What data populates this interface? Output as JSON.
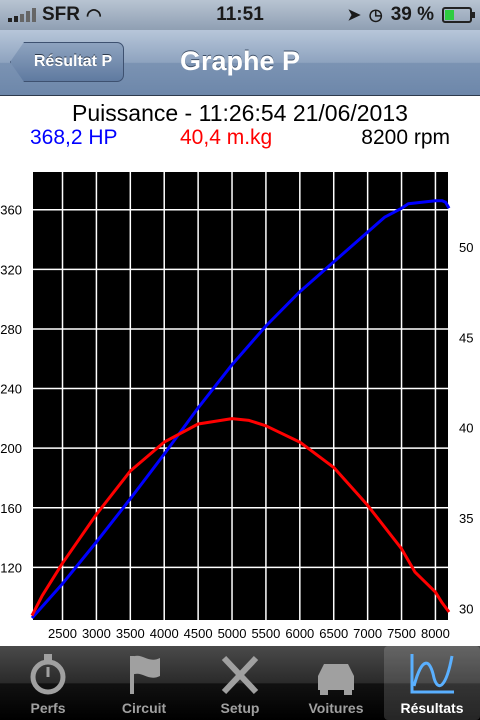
{
  "status_bar": {
    "carrier": "SFR",
    "time": "11:51",
    "battery": "39 %",
    "battery_level": 0.39
  },
  "nav": {
    "title": "Graphe P",
    "back_label": "Résultat P"
  },
  "chart_header": {
    "title": "Puissance - 11:26:54 21/06/2013",
    "power_readout": "368,2 HP",
    "torque_readout": "40,4 m.kg",
    "rpm_readout": "8200 rpm"
  },
  "chart_data": {
    "type": "line",
    "title": "Puissance - 11:26:54 21/06/2013",
    "xlabel": "",
    "ylabel": "",
    "y2label": "",
    "xlim": [
      2050,
      8200
    ],
    "ylim": [
      84,
      386
    ],
    "y2lim": [
      29.3,
      54.2
    ],
    "x_ticks": [
      2500,
      3000,
      3500,
      4000,
      4500,
      5000,
      5500,
      6000,
      6500,
      7000,
      7500,
      8000
    ],
    "y_ticks": [
      120,
      160,
      200,
      240,
      280,
      320,
      360
    ],
    "y2_ticks": [
      30,
      35,
      40,
      45,
      50
    ],
    "grid": true,
    "series": [
      {
        "name": "HP",
        "color": "#0000ff",
        "axis": "left",
        "x": [
          2050,
          2500,
          3000,
          3500,
          4000,
          4500,
          5000,
          5500,
          6000,
          6500,
          7000,
          7250,
          7500,
          7600,
          7800,
          8000,
          8100,
          8150,
          8200
        ],
        "y": [
          86,
          109,
          137,
          166,
          196,
          227,
          256,
          282,
          305,
          325,
          345,
          355,
          361,
          364,
          365,
          366,
          366,
          365,
          361
        ]
      },
      {
        "name": "m.kg",
        "color": "#ff0000",
        "axis": "right",
        "x": [
          2050,
          2200,
          2500,
          3000,
          3500,
          4000,
          4500,
          5000,
          5250,
          5500,
          6000,
          6500,
          7000,
          7500,
          7700,
          8000,
          8100,
          8200
        ],
        "y": [
          29.6,
          30.7,
          32.5,
          35.2,
          37.6,
          39.2,
          40.2,
          40.5,
          40.4,
          40.1,
          39.2,
          37.8,
          35.7,
          33.3,
          32.0,
          30.9,
          30.3,
          29.8
        ]
      }
    ]
  },
  "tabs": [
    {
      "label": "Perfs",
      "icon": "stopwatch-icon"
    },
    {
      "label": "Circuit",
      "icon": "flag-icon"
    },
    {
      "label": "Setup",
      "icon": "tools-icon"
    },
    {
      "label": "Voitures",
      "icon": "car-icon"
    },
    {
      "label": "Résultats",
      "icon": "graph-icon",
      "active": true
    }
  ]
}
